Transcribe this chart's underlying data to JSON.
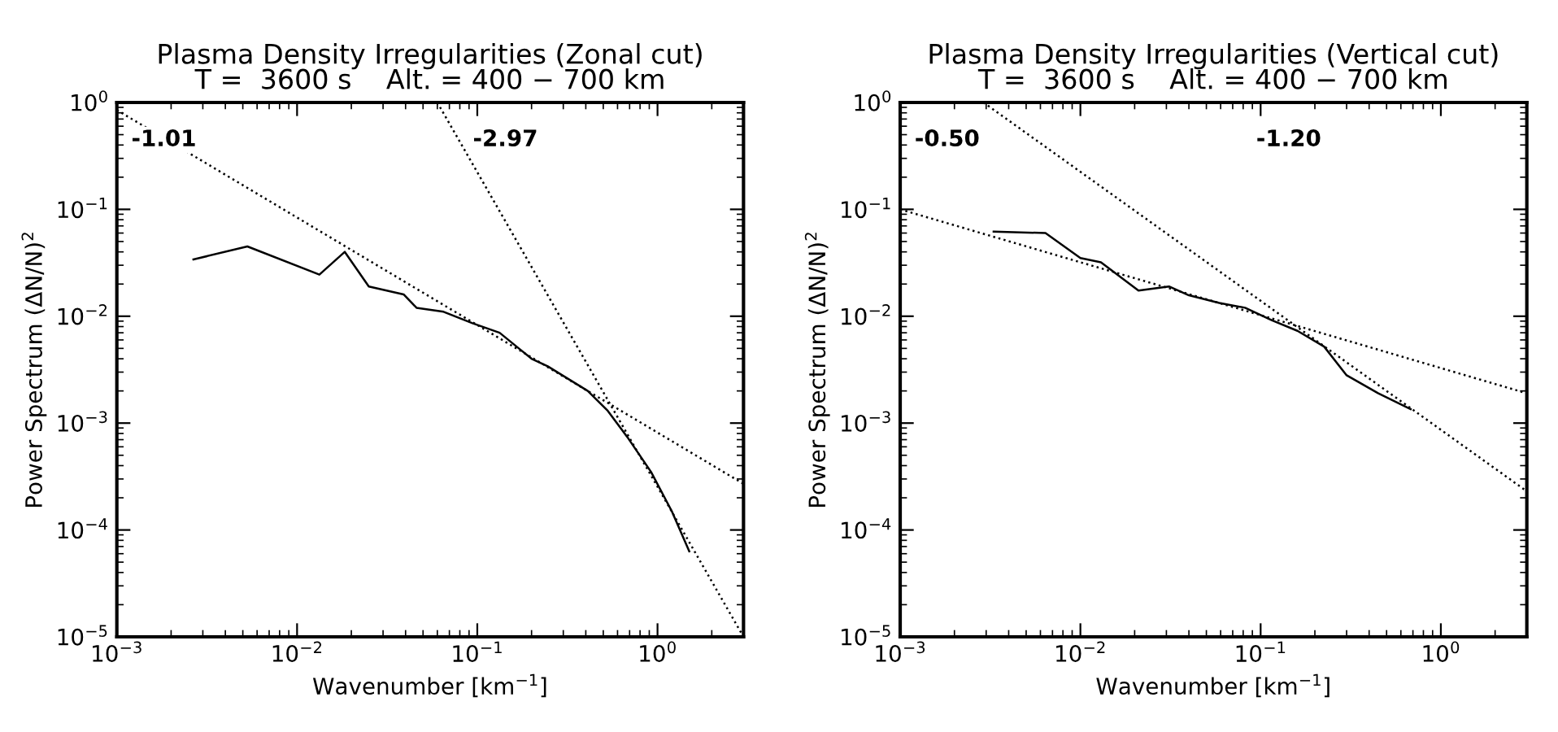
{
  "chart_data": [
    {
      "type": "line",
      "title": "Plasma Density Irregularities (Zonal cut)\nT =  3600 s    Alt. = 400 − 700 km",
      "xlabel": "Wavenumber [km$^{−1}$]",
      "ylabel": "Power Spectrum (ΔN/N)$^{2}$",
      "log": "xy",
      "grid": false,
      "legend": false,
      "xlim": [
        0.001,
        3
      ],
      "ylim": [
        1e-05,
        1
      ],
      "xticks": [
        {
          "value": 0.001,
          "label": "10$^{−3}$"
        },
        {
          "value": 0.01,
          "label": "10$^{−2}$"
        },
        {
          "value": 0.1,
          "label": "10$^{−1}$"
        },
        {
          "value": 1,
          "label": "10$^{0}$"
        }
      ],
      "yticks": [
        {
          "value": 1e-05,
          "label": "10$^{−5}$"
        },
        {
          "value": 0.0001,
          "label": "10$^{−4}$"
        },
        {
          "value": 0.001,
          "label": "10$^{−3}$"
        },
        {
          "value": 0.01,
          "label": "10$^{−2}$"
        },
        {
          "value": 0.1,
          "label": "10$^{−1}$"
        },
        {
          "value": 1,
          "label": "10$^{0}$"
        }
      ],
      "series": [
        {
          "color": "#000000",
          "line_style": "solid",
          "x": [
            0.00266,
            0.0053,
            0.0133,
            0.0184,
            0.025,
            0.039,
            0.046,
            0.065,
            0.094,
            0.133,
            0.17,
            0.2,
            0.246,
            0.41,
            0.53,
            0.68,
            0.92,
            1.2,
            1.5
          ],
          "values": [
            0.034,
            0.045,
            0.0245,
            0.04,
            0.019,
            0.016,
            0.012,
            0.011,
            0.0086,
            0.007,
            0.005,
            0.004,
            0.0034,
            0.002,
            0.0013,
            0.00074,
            0.00035,
            0.00015,
            6.3e-05
          ]
        },
        {
          "color": "#000000",
          "line_style": "dotted",
          "x": [
            0.001,
            3
          ],
          "values": [
            0.85,
            0.00027
          ]
        },
        {
          "color": "#000000",
          "line_style": "dotted",
          "x": [
            0.06,
            3
          ],
          "values": [
            1,
            1e-05
          ]
        }
      ],
      "annotations": [
        "-1.01",
        "-2.97"
      ]
    },
    {
      "type": "line",
      "title": "Plasma Density Irregularities (Vertical cut)\nT =  3600 s    Alt. = 400 − 700 km",
      "xlabel": "Wavenumber [km$^{−1}$]",
      "ylabel": "Power Spectrum (ΔN/N)$^{2}$",
      "log": "xy",
      "grid": false,
      "legend": false,
      "xlim": [
        0.001,
        3
      ],
      "ylim": [
        1e-05,
        1
      ],
      "xticks": [
        {
          "value": 0.001,
          "label": "10$^{−3}$"
        },
        {
          "value": 0.01,
          "label": "10$^{−2}$"
        },
        {
          "value": 0.1,
          "label": "10$^{−1}$"
        },
        {
          "value": 1,
          "label": "10$^{0}$"
        }
      ],
      "yticks": [
        {
          "value": 1e-05,
          "label": "10$^{−5}$"
        },
        {
          "value": 0.0001,
          "label": "10$^{−4}$"
        },
        {
          "value": 0.001,
          "label": "10$^{−3}$"
        },
        {
          "value": 0.01,
          "label": "10$^{−2}$"
        },
        {
          "value": 0.1,
          "label": "10$^{−1}$"
        },
        {
          "value": 1,
          "label": "10$^{0}$"
        }
      ],
      "series": [
        {
          "color": "#000000",
          "line_style": "solid",
          "x": [
            0.0033,
            0.0064,
            0.01,
            0.013,
            0.021,
            0.031,
            0.04,
            0.059,
            0.082,
            0.115,
            0.16,
            0.225,
            0.3,
            0.45,
            0.68
          ],
          "values": [
            0.062,
            0.06,
            0.035,
            0.032,
            0.0174,
            0.019,
            0.0157,
            0.0133,
            0.012,
            0.0092,
            0.0073,
            0.0052,
            0.0028,
            0.0019,
            0.00135
          ]
        },
        {
          "color": "#000000",
          "line_style": "dotted",
          "x": [
            0.001,
            3
          ],
          "values": [
            0.1,
            0.0019
          ]
        },
        {
          "color": "#000000",
          "line_style": "dotted",
          "x": [
            0.0029,
            3
          ],
          "values": [
            1,
            0.00023
          ]
        }
      ],
      "annotations": [
        "-0.50",
        "-1.20"
      ]
    }
  ]
}
